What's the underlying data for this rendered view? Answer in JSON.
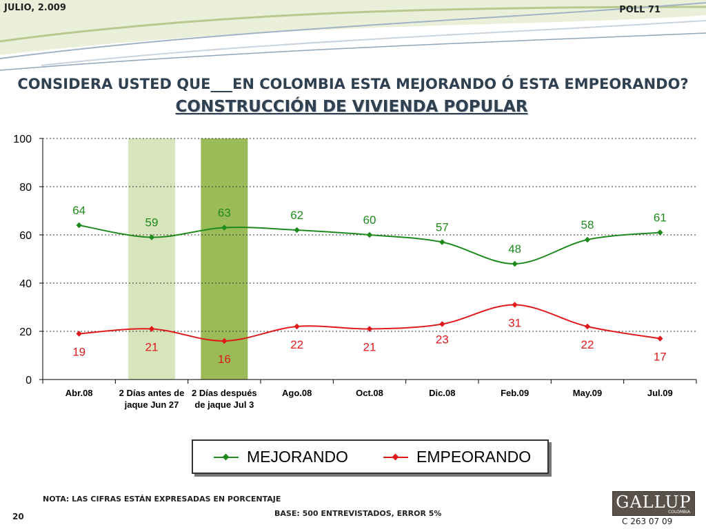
{
  "header": {
    "date": "JULIO, 2.009",
    "poll": "POLL 71"
  },
  "title": "CONSIDERA USTED QUE___EN COLOMBIA ESTA MEJORANDO Ó ESTA EMPEORANDO?",
  "subtitle": "CONSTRUCCIÓN DE VIVIENDA POPULAR",
  "colors": {
    "mejorando": "#1e8a1e",
    "empeorando": "#e0191b",
    "band_light": "#d7e4bc",
    "band_dark": "#9bbb59"
  },
  "chart_data": {
    "type": "line",
    "categories": [
      [
        "Abr.08"
      ],
      [
        "2 Días antes de",
        "jaque Jun 27"
      ],
      [
        "2 Días después",
        "de jaque Jul 3"
      ],
      [
        "Ago.08"
      ],
      [
        "Oct.08"
      ],
      [
        "Dic.08"
      ],
      [
        "Feb.09"
      ],
      [
        "May.09"
      ],
      [
        "Jul.09"
      ]
    ],
    "series": [
      {
        "name": "MEJORANDO",
        "values": [
          64,
          59,
          63,
          62,
          60,
          57,
          48,
          58,
          61
        ]
      },
      {
        "name": "EMPEORANDO",
        "values": [
          19,
          21,
          16,
          22,
          21,
          23,
          31,
          22,
          17
        ]
      }
    ],
    "ylim": [
      0,
      100
    ],
    "yticks": [
      0,
      20,
      40,
      60,
      80,
      100
    ],
    "highlight_categories": [
      1,
      2
    ],
    "grid": true,
    "legend": "bottom"
  },
  "footer": {
    "note": "NOTA: LAS CIFRAS ESTÁN EXPRESADAS EN PORCENTAJE",
    "base": "BASE: 500 ENTREVISTADOS, ERROR 5%",
    "page": "20",
    "logo": "GALLUP",
    "logo_sub": "COLOMBIA",
    "code": "C 263 07 09"
  }
}
